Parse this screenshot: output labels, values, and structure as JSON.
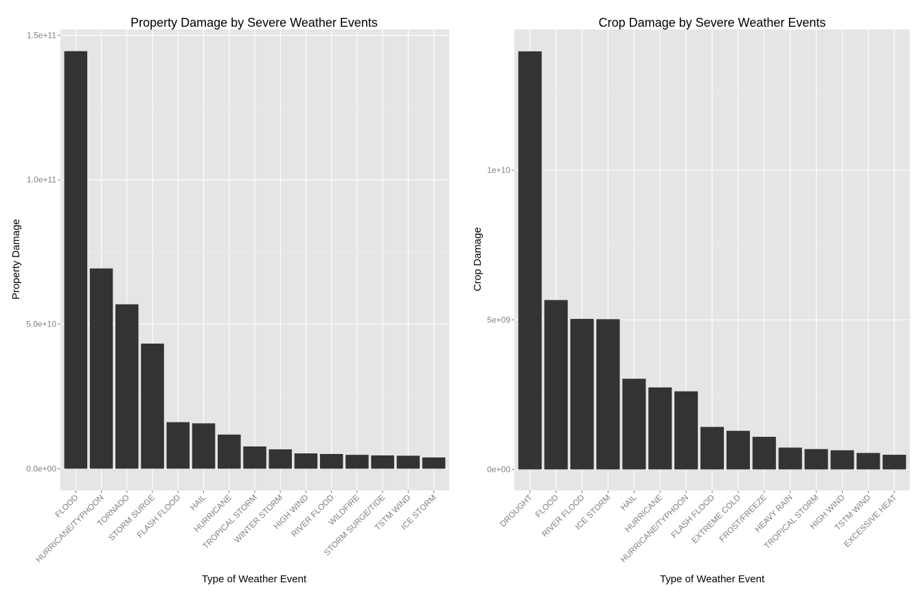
{
  "chart_data": [
    {
      "type": "bar",
      "title": "Property Damage by Severe Weather Events",
      "xlabel": "Type of Weather Event",
      "ylabel": "Property Damage",
      "categories": [
        "FLOOD",
        "HURRICANE/TYPHOON",
        "TORNADO",
        "STORM SURGE",
        "FLASH FLOOD",
        "HAIL",
        "HURRICANE",
        "TROPICAL STORM",
        "WINTER STORM",
        "HIGH WIND",
        "RIVER FLOOD",
        "WILDFIRE",
        "STORM SURGE/TIDE",
        "TSTM WIND",
        "ICE STORM"
      ],
      "values": [
        144500000000,
        69300000000,
        56900000000,
        43300000000,
        16100000000,
        15700000000,
        11800000000,
        7700000000,
        6700000000,
        5300000000,
        5100000000,
        4800000000,
        4600000000,
        4500000000,
        3900000000
      ],
      "ylim": [
        -7500000000,
        152000000000
      ],
      "yticks": [
        0,
        50000000000,
        100000000000,
        150000000000
      ],
      "ytick_labels": [
        "0.0e+00",
        "5.0e+10",
        "1.0e+11",
        "1.5e+11"
      ],
      "grid": true,
      "bar_color": "#333333",
      "panel_color": "#e5e5e5"
    },
    {
      "type": "bar",
      "title": "Crop Damage by Severe Weather Events",
      "xlabel": "Type of Weather Event",
      "ylabel": "Crop Damage",
      "categories": [
        "DROUGHT",
        "FLOOD",
        "RIVER FLOOD",
        "ICE STORM",
        "HAIL",
        "HURRICANE",
        "HURRICANE/TYPHOON",
        "FLASH FLOOD",
        "EXTREME COLD",
        "FROST/FREEZE",
        "HEAVY RAIN",
        "TROPICAL STORM",
        "HIGH WIND",
        "TSTM WIND",
        "EXCESSIVE HEAT"
      ],
      "values": [
        13970000000,
        5660000000,
        5030000000,
        5020000000,
        3030000000,
        2740000000,
        2610000000,
        1420000000,
        1290000000,
        1090000000,
        730000000,
        680000000,
        640000000,
        550000000,
        490000000
      ],
      "ylim": [
        -700000000,
        14700000000
      ],
      "yticks": [
        0,
        5000000000,
        10000000000
      ],
      "ytick_labels": [
        "0e+00",
        "5e+09",
        "1e+10"
      ],
      "grid": true,
      "bar_color": "#333333",
      "panel_color": "#e5e5e5"
    }
  ]
}
